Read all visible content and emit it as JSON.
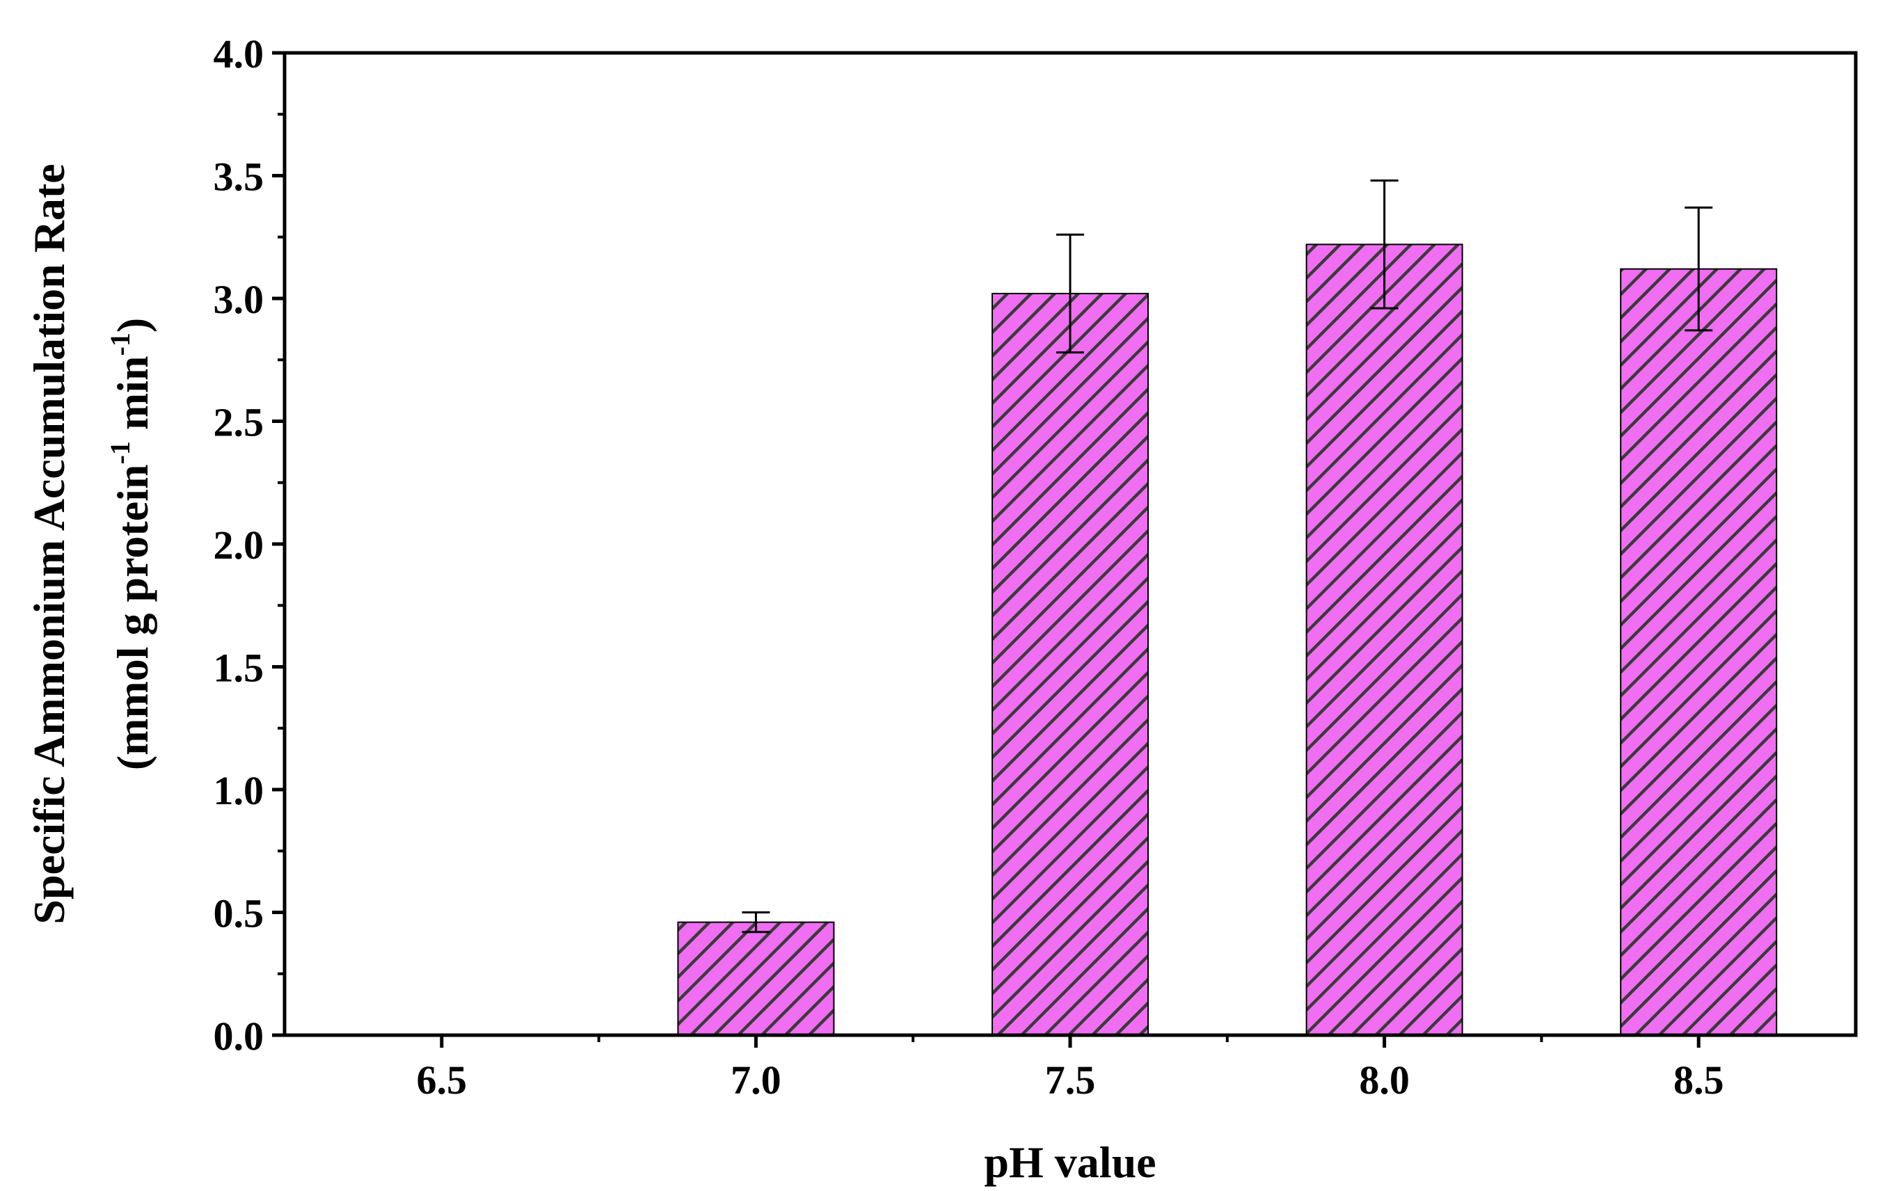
{
  "chart_data": {
    "type": "bar",
    "title": "",
    "xlabel": "pH value",
    "ylabel_line1": "Specific Ammonium Accumulation Rate",
    "ylabel_line2_parts": [
      "(mmol g protein",
      "-1",
      " min",
      "-1",
      ")"
    ],
    "categories": [
      "6.5",
      "7.0",
      "7.5",
      "8.0",
      "8.5"
    ],
    "values": [
      0,
      0.46,
      3.02,
      3.22,
      3.12
    ],
    "errors": [
      0,
      0.04,
      0.24,
      0.26,
      0.25
    ],
    "ylim": [
      0,
      4.0
    ],
    "yticks": [
      "0.0",
      "0.5",
      "1.0",
      "1.5",
      "2.0",
      "2.5",
      "3.0",
      "3.5",
      "4.0"
    ],
    "xlim": [
      6.25,
      8.75
    ],
    "legend": "none",
    "grid": false,
    "colors": {
      "bar_fill": "#f06ef2",
      "hatch": "#3a3a3a",
      "axis": "#000000"
    }
  }
}
